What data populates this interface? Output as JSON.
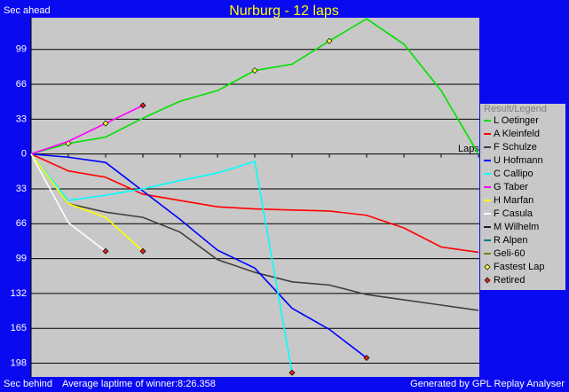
{
  "chart_data": {
    "type": "line",
    "title": "Nurburg - 12 laps",
    "ylabel_top": "Sec ahead",
    "ylabel_bottom": "Sec behind",
    "xlabel": "Laps",
    "footer_left": "Average laptime of winner:8:26.358",
    "footer_right": "Generated by GPL Replay Analyser",
    "legend_title": "Result/Legend",
    "fastest_label": "Fastest Lap",
    "retired_label": "Retired",
    "x": [
      0,
      1,
      2,
      3,
      4,
      5,
      6,
      7,
      8,
      9,
      10,
      11,
      12
    ],
    "xlim": [
      0,
      12
    ],
    "xticks": [
      0,
      1,
      2,
      3,
      4,
      5,
      6,
      7,
      8,
      9,
      10,
      11,
      12
    ],
    "ylim": [
      -211,
      129
    ],
    "yticks": [
      99,
      66,
      33,
      0,
      {
        "value": -33,
        "label": "33"
      },
      {
        "value": -66,
        "label": "66"
      },
      {
        "value": -99,
        "label": "99"
      },
      {
        "value": -132,
        "label": "132"
      },
      {
        "value": -165,
        "label": "165"
      },
      {
        "value": -198,
        "label": "198"
      }
    ],
    "grid": true,
    "series": [
      {
        "name": "L Oetinger",
        "color": "#00e000",
        "values": [
          0,
          10,
          16,
          34,
          50,
          60,
          79,
          85,
          107,
          128,
          104,
          60,
          0
        ],
        "fastest_laps": [
          1,
          6,
          8
        ]
      },
      {
        "name": "A Kleinfeld",
        "color": "#ff0000",
        "values": [
          0,
          -16,
          -22,
          -38,
          -44,
          -50,
          -52,
          -53,
          -54,
          -58,
          -70,
          -88,
          -93
        ]
      },
      {
        "name": "F Schulze",
        "color": "#404040",
        "values": [
          0,
          -47,
          -55,
          -60,
          -74,
          -100,
          -112,
          -121,
          -124,
          -133,
          -138,
          -143,
          -148
        ]
      },
      {
        "name": "U Hofmann",
        "color": "#0000ff",
        "values": [
          0,
          -3,
          -8,
          -35,
          -62,
          -91,
          -108,
          -146,
          -166,
          -193,
          null,
          null,
          null
        ],
        "retired": true
      },
      {
        "name": "C Callipo",
        "color": "#00ffff",
        "values": [
          0,
          -44,
          -39,
          -33,
          -25,
          -18,
          -7,
          -207,
          null,
          null,
          null,
          null,
          null
        ],
        "retired": true
      },
      {
        "name": "G Taber",
        "color": "#ff00ff",
        "values": [
          0,
          12,
          29,
          46,
          null,
          null,
          null,
          null,
          null,
          null,
          null,
          null,
          null
        ],
        "retired": true,
        "fastest_laps": [
          2
        ]
      },
      {
        "name": "H Marfan",
        "color": "#ffff00",
        "values": [
          0,
          -47,
          -60,
          -92,
          null,
          null,
          null,
          null,
          null,
          null,
          null,
          null,
          null
        ],
        "retired": true
      },
      {
        "name": "F Casula",
        "color": "#ffffff",
        "values": [
          0,
          -65,
          -92,
          null,
          null,
          null,
          null,
          null,
          null,
          null,
          null,
          null,
          null
        ],
        "retired": true
      },
      {
        "name": "M Wilhelm",
        "color": "#202020",
        "values": [
          null,
          null,
          null,
          null,
          null,
          null,
          null,
          null,
          null,
          null,
          null,
          null,
          null
        ]
      },
      {
        "name": "R Alpen",
        "color": "#008080",
        "values": [
          null,
          null,
          null,
          null,
          null,
          null,
          null,
          null,
          null,
          null,
          null,
          null,
          null
        ]
      },
      {
        "name": "Geli-60",
        "color": "#808000",
        "values": [
          null,
          null,
          null,
          null,
          null,
          null,
          null,
          null,
          null,
          null,
          null,
          null,
          null
        ]
      }
    ]
  }
}
